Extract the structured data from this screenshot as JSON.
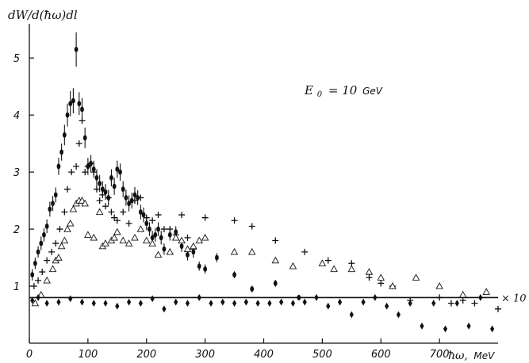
{
  "chart_data": {
    "type": "scatter",
    "title": "",
    "ylabel": "dW/d(ħω)dl",
    "xlabel": "ħω,",
    "xlabel_unit": "MeV",
    "annotation": {
      "symbol": "E",
      "subscript": "0",
      "text": "= 10",
      "unit": "GeV"
    },
    "scale_label": "× 10",
    "xlim": [
      0,
      800
    ],
    "ylim": [
      0,
      5.6
    ],
    "x_ticks": [
      0,
      100,
      200,
      300,
      400,
      500,
      600,
      700
    ],
    "y_ticks": [
      1,
      2,
      3,
      4,
      5
    ],
    "x_tick_labels": [
      "0",
      "100",
      "200",
      "300",
      "400",
      "500",
      "600",
      "700"
    ],
    "y_tick_labels": [
      "1",
      "2",
      "3",
      "4",
      "5"
    ],
    "reference_line_y": 0.8,
    "grid": false,
    "series": [
      {
        "marker": "dot-with-errorbar",
        "x": [
          5,
          10,
          15,
          20,
          25,
          30,
          35,
          40,
          45,
          50,
          55,
          60,
          65,
          70,
          75,
          80,
          85,
          90,
          95,
          100,
          105,
          110,
          115,
          120,
          125,
          130,
          135,
          140,
          145,
          150,
          155,
          160,
          165,
          170,
          175,
          180,
          185,
          190,
          195,
          200,
          205,
          210,
          215,
          220,
          225,
          230,
          240,
          250,
          260,
          270,
          280,
          290,
          300,
          320,
          350,
          380,
          420,
          460
        ],
        "y": [
          1.2,
          1.4,
          1.6,
          1.75,
          1.9,
          2.05,
          2.35,
          2.45,
          2.6,
          3.1,
          3.35,
          3.65,
          4.0,
          4.2,
          4.25,
          5.15,
          4.2,
          4.1,
          3.6,
          3.1,
          3.15,
          3.05,
          2.9,
          2.8,
          2.7,
          2.65,
          2.55,
          2.9,
          2.75,
          3.05,
          3.0,
          2.7,
          2.55,
          2.45,
          2.5,
          2.6,
          2.55,
          2.3,
          2.25,
          2.1,
          2.0,
          1.85,
          1.9,
          2.0,
          1.85,
          1.65,
          1.9,
          1.95,
          1.7,
          1.55,
          1.6,
          1.35,
          1.3,
          1.5,
          1.2,
          0.95,
          1.05,
          0.8
        ],
        "err": [
          0.1,
          0.1,
          0.1,
          0.12,
          0.12,
          0.12,
          0.13,
          0.13,
          0.13,
          0.15,
          0.15,
          0.18,
          0.2,
          0.22,
          0.22,
          0.3,
          0.2,
          0.2,
          0.18,
          0.15,
          0.15,
          0.15,
          0.15,
          0.15,
          0.14,
          0.14,
          0.14,
          0.15,
          0.15,
          0.15,
          0.15,
          0.14,
          0.14,
          0.14,
          0.14,
          0.14,
          0.13,
          0.13,
          0.13,
          0.12,
          0.12,
          0.12,
          0.12,
          0.12,
          0.12,
          0.1,
          0.1,
          0.1,
          0.1,
          0.1,
          0.1,
          0.08,
          0.08,
          0.08,
          0.06,
          0.06,
          0.06,
          0.05
        ]
      },
      {
        "marker": "cross",
        "x": [
          8,
          15,
          22,
          30,
          38,
          45,
          52,
          60,
          65,
          72,
          80,
          85,
          90,
          95,
          100,
          105,
          110,
          115,
          120,
          125,
          130,
          135,
          140,
          145,
          150,
          160,
          170,
          180,
          190,
          200,
          210,
          220,
          230,
          240,
          250,
          260,
          270,
          280,
          300,
          350,
          380,
          420,
          470,
          510,
          550,
          580,
          600,
          620,
          650,
          700,
          720,
          740,
          760,
          800
        ],
        "y": [
          1.0,
          1.1,
          1.25,
          1.45,
          1.6,
          1.75,
          2.0,
          2.3,
          2.7,
          3.0,
          3.1,
          3.5,
          3.9,
          3.0,
          3.1,
          3.15,
          3.0,
          2.7,
          2.5,
          2.6,
          2.4,
          2.55,
          2.3,
          2.2,
          2.15,
          2.3,
          2.1,
          2.5,
          2.55,
          2.2,
          2.15,
          2.25,
          2.0,
          2.0,
          1.9,
          2.25,
          1.85,
          1.65,
          2.2,
          2.15,
          2.05,
          1.8,
          1.6,
          1.45,
          1.4,
          1.15,
          1.05,
          1.0,
          0.75,
          0.8,
          0.7,
          0.75,
          0.7,
          0.6
        ]
      },
      {
        "marker": "triangle",
        "x": [
          10,
          20,
          30,
          40,
          45,
          50,
          55,
          60,
          65,
          70,
          75,
          80,
          85,
          90,
          95,
          100,
          110,
          120,
          125,
          130,
          140,
          145,
          150,
          160,
          170,
          180,
          190,
          200,
          210,
          220,
          240,
          250,
          260,
          270,
          280,
          290,
          300,
          350,
          380,
          420,
          450,
          500,
          520,
          550,
          580,
          600,
          620,
          660,
          700,
          740,
          780
        ],
        "y": [
          0.7,
          0.85,
          1.1,
          1.3,
          1.45,
          1.5,
          1.7,
          1.8,
          2.0,
          2.1,
          2.35,
          2.45,
          2.5,
          2.5,
          2.45,
          1.9,
          1.85,
          2.3,
          1.7,
          1.75,
          1.8,
          1.85,
          1.95,
          1.8,
          1.75,
          1.85,
          2.0,
          1.8,
          1.75,
          1.55,
          1.6,
          1.85,
          1.8,
          1.65,
          1.7,
          1.8,
          1.85,
          1.6,
          1.6,
          1.45,
          1.35,
          1.4,
          1.3,
          1.3,
          1.25,
          1.15,
          1.0,
          1.15,
          1.0,
          0.85,
          0.9
        ]
      },
      {
        "marker": "diamond-x10",
        "x": [
          5,
          15,
          30,
          50,
          70,
          90,
          110,
          130,
          150,
          170,
          190,
          210,
          230,
          250,
          270,
          290,
          310,
          330,
          350,
          370,
          390,
          410,
          430,
          450,
          470,
          490,
          510,
          530,
          550,
          570,
          590,
          610,
          630,
          650,
          670,
          690,
          710,
          730,
          750,
          770,
          790
        ],
        "y": [
          0.75,
          0.8,
          0.7,
          0.72,
          0.78,
          0.72,
          0.7,
          0.7,
          0.65,
          0.72,
          0.7,
          0.78,
          0.6,
          0.72,
          0.7,
          0.8,
          0.7,
          0.72,
          0.7,
          0.72,
          0.7,
          0.7,
          0.72,
          0.7,
          0.72,
          0.8,
          0.65,
          0.72,
          0.5,
          0.72,
          0.8,
          0.65,
          0.5,
          0.7,
          0.3,
          0.7,
          0.25,
          0.7,
          0.3,
          0.8,
          0.25
        ]
      }
    ]
  }
}
